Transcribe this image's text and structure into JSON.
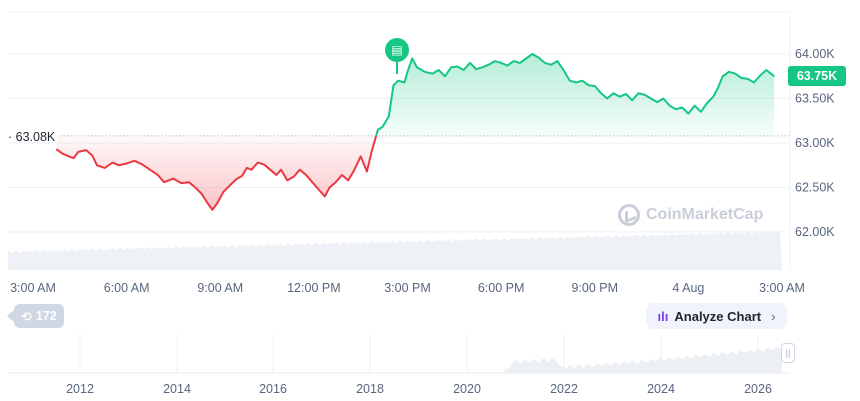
{
  "chart_data": {
    "type": "line",
    "title": "",
    "xlabel": "",
    "ylabel": "",
    "baseline": 63080,
    "baseline_label": "63.08K",
    "current_price_label": "63.75K",
    "ylim": [
      61500,
      64550
    ],
    "y_ticks": [
      62000,
      62500,
      63000,
      63500,
      64000
    ],
    "y_tick_labels": [
      "62.00K",
      "62.50K",
      "63.00K",
      "63.50K",
      "64.00K"
    ],
    "x_ticks": [
      {
        "hours": 0,
        "label": "3:00 AM"
      },
      {
        "hours": 3,
        "label": "6:00 AM"
      },
      {
        "hours": 6,
        "label": "9:00 AM"
      },
      {
        "hours": 9,
        "label": "12:00 PM"
      },
      {
        "hours": 12,
        "label": "3:00 PM"
      },
      {
        "hours": 15,
        "label": "6:00 PM"
      },
      {
        "hours": 18,
        "label": "9:00 PM"
      },
      {
        "hours": 21,
        "label": "4 Aug"
      },
      {
        "hours": 24,
        "label": "3:00 AM"
      }
    ],
    "series": [
      {
        "points": [
          [
            0.75,
            62930
          ],
          [
            0.95,
            62880
          ],
          [
            1.15,
            62850
          ],
          [
            1.3,
            62830
          ],
          [
            1.45,
            62900
          ],
          [
            1.7,
            62920
          ],
          [
            1.9,
            62860
          ],
          [
            2.05,
            62750
          ],
          [
            2.3,
            62720
          ],
          [
            2.55,
            62780
          ],
          [
            2.75,
            62750
          ],
          [
            3.0,
            62770
          ],
          [
            3.25,
            62800
          ],
          [
            3.5,
            62760
          ],
          [
            3.75,
            62700
          ],
          [
            4.0,
            62640
          ],
          [
            4.2,
            62560
          ],
          [
            4.5,
            62600
          ],
          [
            4.75,
            62550
          ],
          [
            5.0,
            62560
          ],
          [
            5.2,
            62500
          ],
          [
            5.4,
            62430
          ],
          [
            5.6,
            62320
          ],
          [
            5.75,
            62250
          ],
          [
            5.9,
            62320
          ],
          [
            6.1,
            62450
          ],
          [
            6.3,
            62520
          ],
          [
            6.5,
            62590
          ],
          [
            6.7,
            62630
          ],
          [
            6.85,
            62720
          ],
          [
            7.0,
            62700
          ],
          [
            7.2,
            62780
          ],
          [
            7.4,
            62760
          ],
          [
            7.6,
            62700
          ],
          [
            7.8,
            62640
          ],
          [
            7.95,
            62700
          ],
          [
            8.15,
            62580
          ],
          [
            8.35,
            62620
          ],
          [
            8.55,
            62700
          ],
          [
            8.75,
            62640
          ],
          [
            8.95,
            62560
          ],
          [
            9.2,
            62460
          ],
          [
            9.35,
            62400
          ],
          [
            9.5,
            62500
          ],
          [
            9.7,
            62560
          ],
          [
            9.9,
            62640
          ],
          [
            10.1,
            62580
          ],
          [
            10.3,
            62700
          ],
          [
            10.5,
            62850
          ],
          [
            10.7,
            62680
          ],
          [
            10.85,
            62900
          ],
          [
            11.05,
            63150
          ],
          [
            11.2,
            63180
          ],
          [
            11.4,
            63300
          ],
          [
            11.55,
            63650
          ],
          [
            11.7,
            63700
          ],
          [
            11.9,
            63680
          ],
          [
            12.0,
            63800
          ],
          [
            12.15,
            63950
          ],
          [
            12.3,
            63850
          ],
          [
            12.55,
            63800
          ],
          [
            12.8,
            63780
          ],
          [
            13.0,
            63820
          ],
          [
            13.2,
            63750
          ],
          [
            13.4,
            63850
          ],
          [
            13.6,
            63860
          ],
          [
            13.8,
            63820
          ],
          [
            14.0,
            63900
          ],
          [
            14.2,
            63830
          ],
          [
            14.4,
            63850
          ],
          [
            14.6,
            63880
          ],
          [
            14.8,
            63920
          ],
          [
            15.0,
            63900
          ],
          [
            15.2,
            63870
          ],
          [
            15.4,
            63920
          ],
          [
            15.6,
            63900
          ],
          [
            15.8,
            63950
          ],
          [
            16.0,
            64000
          ],
          [
            16.2,
            63960
          ],
          [
            16.4,
            63900
          ],
          [
            16.6,
            63880
          ],
          [
            16.8,
            63920
          ],
          [
            17.0,
            63820
          ],
          [
            17.2,
            63700
          ],
          [
            17.4,
            63680
          ],
          [
            17.6,
            63700
          ],
          [
            17.8,
            63650
          ],
          [
            18.0,
            63640
          ],
          [
            18.2,
            63560
          ],
          [
            18.4,
            63500
          ],
          [
            18.6,
            63560
          ],
          [
            18.8,
            63520
          ],
          [
            19.0,
            63550
          ],
          [
            19.2,
            63480
          ],
          [
            19.4,
            63560
          ],
          [
            19.6,
            63540
          ],
          [
            19.8,
            63500
          ],
          [
            20.0,
            63460
          ],
          [
            20.2,
            63500
          ],
          [
            20.4,
            63420
          ],
          [
            20.6,
            63380
          ],
          [
            20.8,
            63400
          ],
          [
            21.0,
            63330
          ],
          [
            21.2,
            63420
          ],
          [
            21.4,
            63350
          ],
          [
            21.6,
            63450
          ],
          [
            21.8,
            63520
          ],
          [
            21.95,
            63620
          ],
          [
            22.1,
            63750
          ],
          [
            22.3,
            63800
          ],
          [
            22.5,
            63780
          ],
          [
            22.7,
            63730
          ],
          [
            22.9,
            63720
          ],
          [
            23.1,
            63680
          ],
          [
            23.3,
            63760
          ],
          [
            23.5,
            63820
          ],
          [
            23.75,
            63750
          ]
        ]
      }
    ]
  },
  "overview": {
    "year_labels": [
      "2012",
      "2014",
      "2016",
      "2018",
      "2020",
      "2022",
      "2024",
      "2026"
    ]
  },
  "ui": {
    "analyze_label": "Analyze Chart",
    "events_count": "172",
    "watermark": "CoinMarketCap"
  },
  "colors": {
    "up": "#16c784",
    "down": "#ea3943",
    "grid": "#eff2f5",
    "volume": "#eff2f5"
  }
}
